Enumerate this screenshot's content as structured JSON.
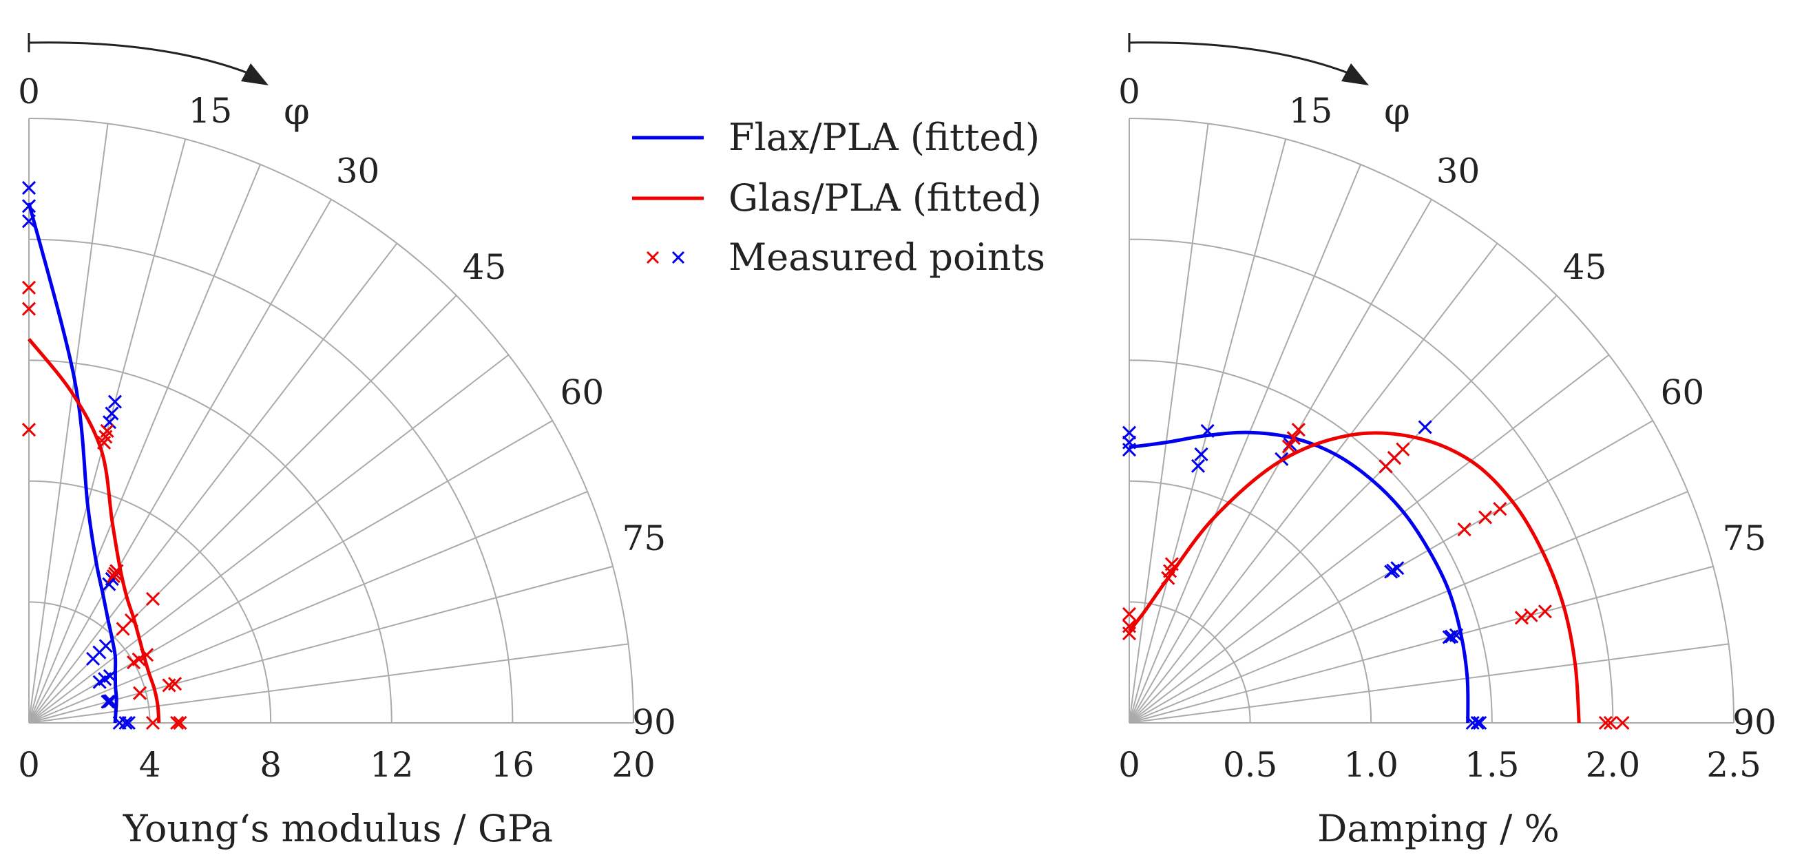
{
  "colors": {
    "flax": "#0000ee",
    "glas": "#ee0000",
    "grid": "#aaaaaa",
    "axis": "#222222"
  },
  "legend": {
    "flax_label": "Flax/PLA (fitted)",
    "glas_label": "Glas/PLA (fitted)",
    "measured_label": "Measured points",
    "marker": "×"
  },
  "chart_data": [
    {
      "type": "polar-quadrant",
      "id": "modulus",
      "xlabel": "Young‘s modulus / GPa",
      "angle_symbol": "φ",
      "rlim": [
        0,
        20
      ],
      "radial_ticks": [
        "0",
        "4",
        "8",
        "12",
        "16",
        "20"
      ],
      "radial_values": [
        0,
        4,
        8,
        12,
        16,
        20
      ],
      "angle_ticks": [
        "0",
        "15",
        "30",
        "45",
        "60",
        "75",
        "90"
      ],
      "angle_values": [
        0,
        15,
        30,
        45,
        60,
        75,
        90
      ],
      "angle_gridlines_step": 7.5,
      "series": [
        {
          "name": "Flax/PLA (fitted)",
          "color_key": "flax",
          "fitted": [
            [
              0,
              17.2
            ],
            [
              7.5,
              11.5
            ],
            [
              15,
              7.5
            ],
            [
              22.5,
              5.8
            ],
            [
              30,
              4.9
            ],
            [
              37.5,
              4.3
            ],
            [
              45,
              3.9
            ],
            [
              52.5,
              3.6
            ],
            [
              60,
              3.3
            ],
            [
              67.5,
              3.1
            ],
            [
              75,
              3.0
            ],
            [
              82.5,
              2.9
            ],
            [
              90,
              2.85
            ]
          ],
          "measured": [
            [
              0,
              17.7
            ],
            [
              0,
              17.1
            ],
            [
              0,
              16.6
            ],
            [
              15,
              11.0
            ],
            [
              15,
              10.6
            ],
            [
              15,
              10.3
            ],
            [
              30,
              5.8
            ],
            [
              30,
              5.5
            ],
            [
              30,
              5.3
            ],
            [
              45,
              3.6
            ],
            [
              45,
              3.3
            ],
            [
              45,
              3.0
            ],
            [
              60,
              3.1
            ],
            [
              60,
              2.9
            ],
            [
              60,
              2.7
            ],
            [
              75,
              2.8
            ],
            [
              75,
              2.75
            ],
            [
              75,
              2.7
            ],
            [
              90,
              3.2
            ],
            [
              90,
              3.0
            ],
            [
              90,
              3.3
            ]
          ]
        },
        {
          "name": "Glas/PLA (fitted)",
          "color_key": "glas",
          "fitted": [
            [
              0,
              12.7
            ],
            [
              7.5,
              11.0
            ],
            [
              15,
              9.3
            ],
            [
              22.5,
              7.2
            ],
            [
              30,
              6.0
            ],
            [
              37.5,
              5.3
            ],
            [
              45,
              4.9
            ],
            [
              52.5,
              4.6
            ],
            [
              60,
              4.4
            ],
            [
              67.5,
              4.3
            ],
            [
              75,
              4.3
            ],
            [
              82.5,
              4.3
            ],
            [
              90,
              4.3
            ]
          ],
          "measured": [
            [
              0,
              14.4
            ],
            [
              0,
              13.7
            ],
            [
              0,
              9.7
            ],
            [
              15,
              10.0
            ],
            [
              15,
              9.8
            ],
            [
              15,
              9.6
            ],
            [
              30,
              5.7
            ],
            [
              30,
              5.6
            ],
            [
              30,
              5.8
            ],
            [
              45,
              4.8
            ],
            [
              45,
              4.4
            ],
            [
              45,
              5.8
            ],
            [
              60,
              4.5
            ],
            [
              60,
              4.2
            ],
            [
              60,
              4.0
            ],
            [
              75,
              3.8
            ],
            [
              75,
              4.8
            ],
            [
              75,
              5.0
            ],
            [
              90,
              4.1
            ],
            [
              90,
              4.9
            ],
            [
              90,
              5.0
            ]
          ]
        }
      ]
    },
    {
      "type": "polar-quadrant",
      "id": "damping",
      "xlabel": "Damping / %",
      "angle_symbol": "φ",
      "rlim": [
        0,
        2.5
      ],
      "radial_ticks": [
        "0",
        "0.5",
        "1.0",
        "1.5",
        "2.0",
        "2.5"
      ],
      "radial_values": [
        0,
        0.5,
        1.0,
        1.5,
        2.0,
        2.5
      ],
      "angle_ticks": [
        "0",
        "15",
        "30",
        "45",
        "60",
        "75",
        "90"
      ],
      "angle_values": [
        0,
        15,
        30,
        45,
        60,
        75,
        90
      ],
      "angle_gridlines_step": 7.5,
      "series": [
        {
          "name": "Flax/PLA (fitted)",
          "color_key": "flax",
          "fitted": [
            [
              0,
              1.14
            ],
            [
              7.5,
              1.17
            ],
            [
              15,
              1.23
            ],
            [
              22.5,
              1.3
            ],
            [
              30,
              1.36
            ],
            [
              37.5,
              1.4
            ],
            [
              45,
              1.42
            ],
            [
              52.5,
              1.43
            ],
            [
              60,
              1.43
            ],
            [
              67.5,
              1.43
            ],
            [
              75,
              1.42
            ],
            [
              82.5,
              1.41
            ],
            [
              90,
              1.4
            ]
          ],
          "measured": [
            [
              0,
              1.2
            ],
            [
              0,
              1.16
            ],
            [
              0,
              1.13
            ],
            [
              15,
              1.15
            ],
            [
              15,
              1.1
            ],
            [
              15,
              1.25
            ],
            [
              30,
              1.26
            ],
            [
              30,
              1.33
            ],
            [
              30,
              1.36
            ],
            [
              45,
              1.73
            ],
            [
              45,
              1.55
            ],
            [
              45,
              1.5
            ],
            [
              60,
              1.28
            ],
            [
              60,
              1.26
            ],
            [
              60,
              1.25
            ],
            [
              75,
              1.4
            ],
            [
              75,
              1.38
            ],
            [
              75,
              1.37
            ],
            [
              90,
              1.42
            ],
            [
              90,
              1.44
            ],
            [
              90,
              1.45
            ]
          ]
        },
        {
          "name": "Glas/PLA (fitted)",
          "color_key": "glas",
          "fitted": [
            [
              0,
              0.38
            ],
            [
              7.5,
              0.46
            ],
            [
              15,
              0.62
            ],
            [
              22.5,
              0.92
            ],
            [
              30,
              1.25
            ],
            [
              37.5,
              1.5
            ],
            [
              45,
              1.67
            ],
            [
              52.5,
              1.78
            ],
            [
              60,
              1.83
            ],
            [
              67.5,
              1.85
            ],
            [
              75,
              1.86
            ],
            [
              82.5,
              1.86
            ],
            [
              90,
              1.86
            ]
          ],
          "measured": [
            [
              0,
              0.45
            ],
            [
              0,
              0.4
            ],
            [
              0,
              0.37
            ],
            [
              15,
              0.65
            ],
            [
              15,
              0.68
            ],
            [
              15,
              0.62
            ],
            [
              30,
              1.4
            ],
            [
              30,
              1.36
            ],
            [
              30,
              1.32
            ],
            [
              45,
              1.6
            ],
            [
              45,
              1.55
            ],
            [
              45,
              1.5
            ],
            [
              60,
              1.6
            ],
            [
              60,
              1.7
            ],
            [
              60,
              1.77
            ],
            [
              75,
              1.68
            ],
            [
              75,
              1.72
            ],
            [
              75,
              1.78
            ],
            [
              90,
              1.97
            ],
            [
              90,
              1.99
            ],
            [
              90,
              2.04
            ]
          ]
        }
      ]
    }
  ]
}
